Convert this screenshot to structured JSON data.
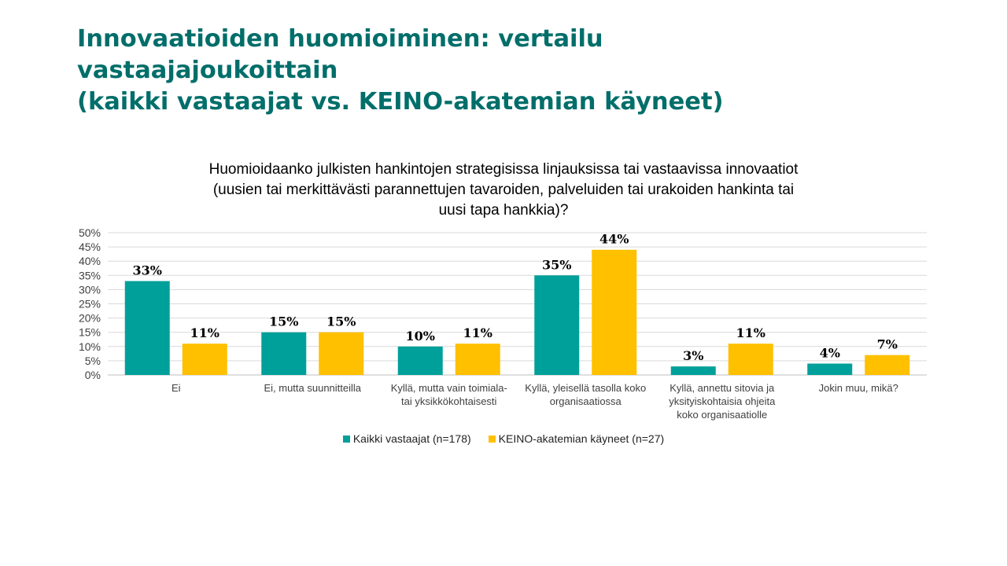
{
  "slide": {
    "title_lines": [
      "Innovaatioiden huomioiminen: vertailu",
      "vastaajajoukoittain",
      "(kaikki vastaajat vs. KEINO-akatemian käyneet)"
    ]
  },
  "colors": {
    "series1": "#00A09A",
    "series2": "#FFC000",
    "title": "#006E6A",
    "grid": "#D9D9D9"
  },
  "chart_data": {
    "type": "bar",
    "title_lines": [
      "Huomioidaanko julkisten hankintojen strategisissa linjauksissa tai vastaavissa innovaatiot",
      "(uusien tai merkittävästi parannettujen tavaroiden, palveluiden tai urakoiden hankinta tai",
      "uusi tapa hankkia)?"
    ],
    "categories": [
      [
        "Ei"
      ],
      [
        "Ei, mutta suunnitteilla"
      ],
      [
        "Kyllä, mutta vain toimiala-",
        "tai yksikkökohtaisesti"
      ],
      [
        "Kyllä, yleisellä tasolla koko",
        "organisaatiossa"
      ],
      [
        "Kyllä, annettu sitovia ja",
        "yksityiskohtaisia ohjeita",
        "koko organisaatiolle"
      ],
      [
        "Jokin muu, mikä?"
      ]
    ],
    "series": [
      {
        "name": "Kaikki vastaajat (n=178)",
        "values": [
          33,
          15,
          10,
          35,
          3,
          4
        ],
        "value_labels": [
          "33%",
          "15%",
          "10%",
          "35%",
          "3%",
          "4%"
        ]
      },
      {
        "name": "KEINO-akatemian käyneet (n=27)",
        "values": [
          11,
          15,
          11,
          44,
          11,
          7
        ],
        "value_labels": [
          "11%",
          "15%",
          "11%",
          "44%",
          "11%",
          "7%"
        ]
      }
    ],
    "y_ticks": [
      "0%",
      "5%",
      "10%",
      "15%",
      "20%",
      "25%",
      "30%",
      "35%",
      "40%",
      "45%",
      "50%"
    ],
    "ylim": [
      0,
      50
    ],
    "grid": true,
    "legend": "bottom"
  }
}
